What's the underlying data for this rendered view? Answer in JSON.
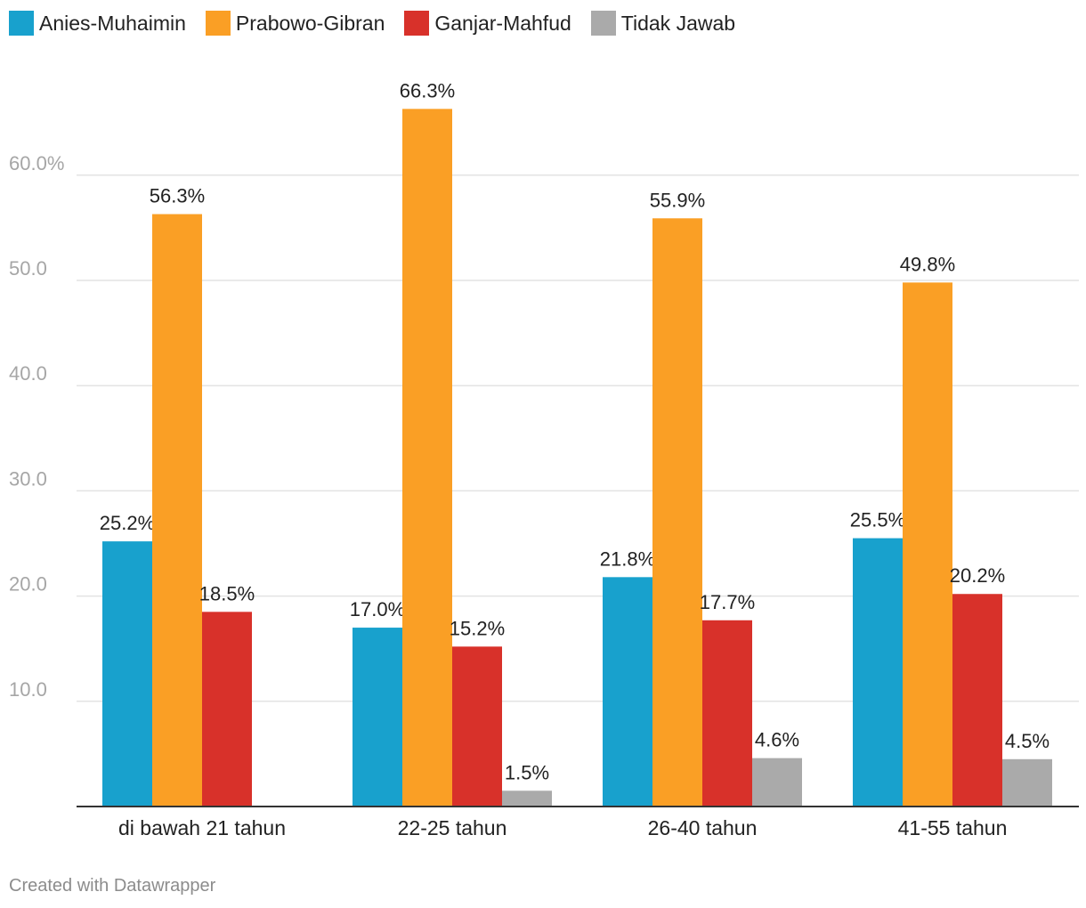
{
  "chart_data": {
    "type": "bar",
    "categories": [
      "di bawah 21 tahun",
      "22-25 tahun",
      "26-40 tahun",
      "41-55 tahun"
    ],
    "series": [
      {
        "name": "Anies-Muhaimin",
        "color": "#18a1cd",
        "values": [
          25.2,
          17.0,
          21.8,
          25.5
        ],
        "labels": [
          "25.2%",
          "17.0%",
          "21.8%",
          "25.5%"
        ]
      },
      {
        "name": "Prabowo-Gibran",
        "color": "#fa9f25",
        "values": [
          56.3,
          66.3,
          55.9,
          49.8
        ],
        "labels": [
          "56.3%",
          "66.3%",
          "55.9%",
          "49.8%"
        ]
      },
      {
        "name": "Ganjar-Mahfud",
        "color": "#d8312a",
        "values": [
          18.5,
          15.2,
          17.7,
          20.2
        ],
        "labels": [
          "18.5%",
          "15.2%",
          "17.7%",
          "20.2%"
        ]
      },
      {
        "name": "Tidak Jawab",
        "color": "#aaaaaa",
        "values": [
          0,
          1.5,
          4.6,
          4.5
        ],
        "labels": [
          "",
          "1.5%",
          "4.6%",
          "4.5%"
        ]
      }
    ],
    "yticks": [
      10,
      20,
      30,
      40,
      50,
      60
    ],
    "ytick_labels": [
      "10.0",
      "20.0",
      "30.0",
      "40.0",
      "50.0",
      "60.0%"
    ],
    "ylim": [
      0,
      70
    ],
    "grid": true,
    "legend_position": "top-left"
  },
  "footer": {
    "credit": "Created with Datawrapper"
  }
}
